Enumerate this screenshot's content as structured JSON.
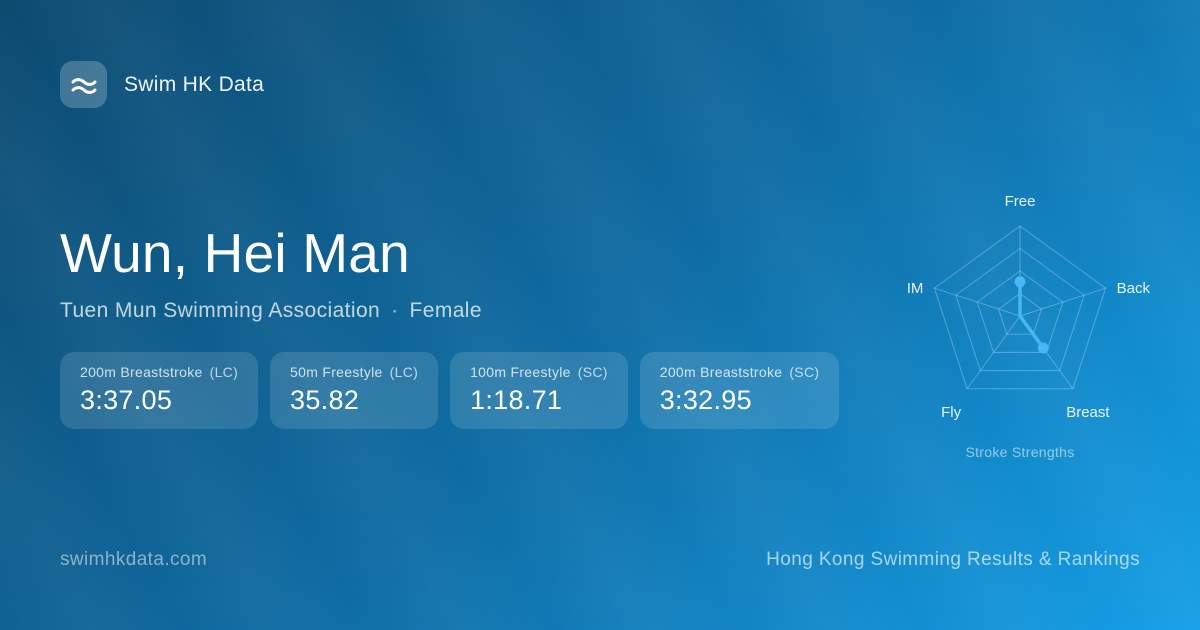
{
  "brand": {
    "name": "Swim HK Data",
    "icon": "waves-icon"
  },
  "athlete": {
    "name": "Wun, Hei Man",
    "club": "Tuen Mun Swimming Association",
    "separator": "·",
    "gender": "Female"
  },
  "best_times": [
    {
      "event": "200m Breaststroke",
      "course": "(LC)",
      "time": "3:37.05"
    },
    {
      "event": "50m Freestyle",
      "course": "(LC)",
      "time": "35.82"
    },
    {
      "event": "100m Freestyle",
      "course": "(SC)",
      "time": "1:18.71"
    },
    {
      "event": "200m Breaststroke",
      "course": "(SC)",
      "time": "3:32.95"
    }
  ],
  "chart_data": {
    "type": "radar",
    "title": "Stroke Strengths",
    "categories": [
      "Free",
      "Back",
      "Breast",
      "Fly",
      "IM"
    ],
    "values": [
      0.38,
      0,
      0.44,
      0,
      0
    ],
    "max": 1.0,
    "rings": [
      0.25,
      0.5,
      0.75,
      1.0
    ],
    "grid": "on",
    "colors": {
      "grid": "rgba(255,255,255,0.28)",
      "series": "#45b7f2",
      "label": "rgba(255,255,255,0.9)",
      "caption": "rgba(255,255,255,0.55)"
    }
  },
  "footer": {
    "left": "swimhkdata.com",
    "right": "Hong Kong Swimming Results & Rankings"
  },
  "colors": {
    "background_top_left": "#0d4a70",
    "background_bottom_right": "#149fe8",
    "card_background": "rgba(255,255,255,0.13)",
    "accent": "#45b7f2"
  }
}
